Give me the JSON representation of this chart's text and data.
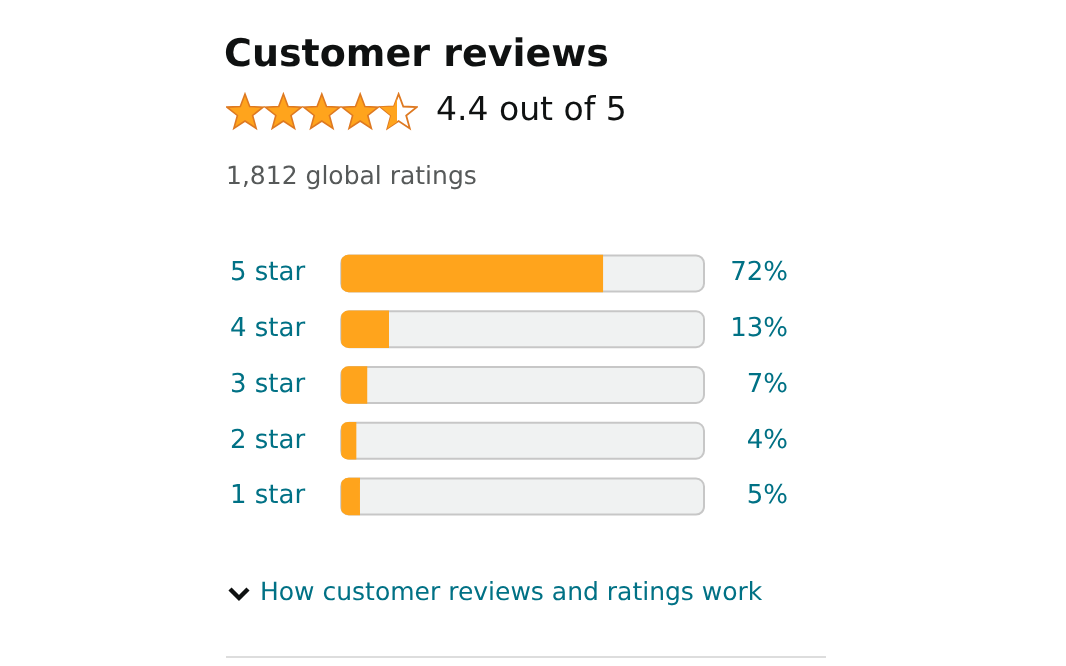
{
  "chart_data": {
    "type": "bar",
    "orientation": "horizontal",
    "title": "Customer reviews",
    "subtitle": "4.4 out of 5",
    "annotations": [
      "1,812 global ratings",
      "How customer reviews and ratings work"
    ],
    "categories": [
      "5 star",
      "4 star",
      "3 star",
      "2 star",
      "1 star"
    ],
    "values": [
      72,
      13,
      7,
      4,
      5
    ],
    "value_labels": [
      "72%",
      "13%",
      "7%",
      "4%",
      "5%"
    ],
    "color": "#ffa41c",
    "xlim": [
      0,
      100
    ],
    "tick_labels": "y",
    "grid": false,
    "legend": false
  }
}
